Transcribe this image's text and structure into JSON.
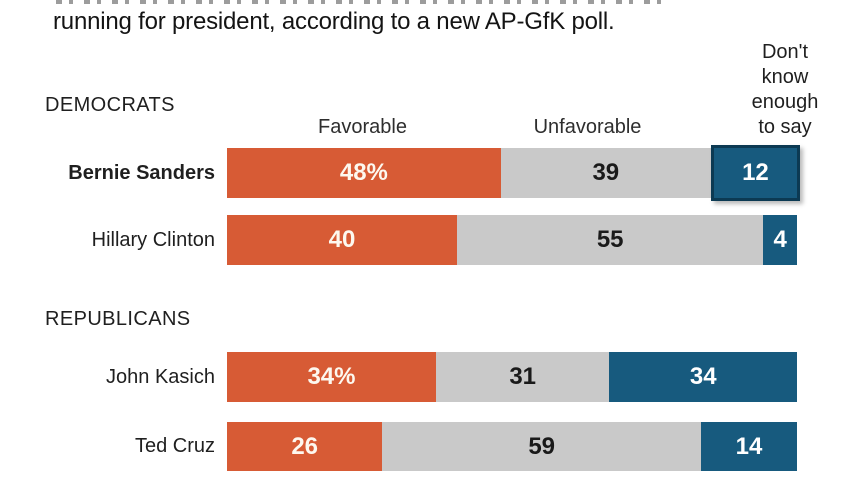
{
  "title": "running for president, according to a new AP-GfK poll.",
  "headers": {
    "favorable": "Favorable",
    "unfavorable": "Unfavorable",
    "dont_know_lines": [
      "Don't",
      "know",
      "enough",
      "to say"
    ]
  },
  "sections": [
    {
      "label": "DEMOCRATS"
    },
    {
      "label": "REPUBLICANS"
    }
  ],
  "rows": [
    {
      "label": "Bernie Sanders",
      "segments": [
        {
          "kind": "favorable",
          "value": 48,
          "display": "48%"
        },
        {
          "kind": "unfavorable",
          "value": 39,
          "display": "39"
        },
        {
          "kind": "dont_know",
          "value": 12,
          "display": "12"
        }
      ]
    },
    {
      "label": "Hillary Clinton",
      "segments": [
        {
          "kind": "favorable",
          "value": 40,
          "display": "40"
        },
        {
          "kind": "unfavorable",
          "value": 55,
          "display": "55"
        },
        {
          "kind": "dont_know",
          "value": 4,
          "display": "4"
        }
      ]
    },
    {
      "label": "John Kasich",
      "segments": [
        {
          "kind": "favorable",
          "value": 34,
          "display": "34%"
        },
        {
          "kind": "unfavorable",
          "value": 31,
          "display": "31"
        },
        {
          "kind": "dont_know",
          "value": 34,
          "display": "34"
        }
      ]
    },
    {
      "label": "Ted Cruz",
      "segments": [
        {
          "kind": "favorable",
          "value": 26,
          "display": "26"
        },
        {
          "kind": "unfavorable",
          "value": 59,
          "display": "59"
        },
        {
          "kind": "dont_know",
          "value": 14,
          "display": "14"
        }
      ]
    }
  ],
  "colors": {
    "favorable": "#d75b35",
    "unfavorable": "#c9c9c9",
    "dont_know": "#175a7e",
    "dont_know_highlight_border": "#0c3a53"
  },
  "chart_data": {
    "type": "bar",
    "orientation": "horizontal",
    "stacked": true,
    "title": "running for president, according to a new AP-GfK poll.",
    "categories": [
      "Bernie Sanders",
      "Hillary Clinton",
      "John Kasich",
      "Ted Cruz"
    ],
    "groups": [
      {
        "label": "DEMOCRATS",
        "members": [
          "Bernie Sanders",
          "Hillary Clinton"
        ]
      },
      {
        "label": "REPUBLICANS",
        "members": [
          "John Kasich",
          "Ted Cruz"
        ]
      }
    ],
    "series": [
      {
        "name": "Favorable",
        "values": [
          48,
          40,
          34,
          26
        ],
        "color": "#d75b35"
      },
      {
        "name": "Unfavorable",
        "values": [
          39,
          55,
          31,
          59
        ],
        "color": "#c9c9c9"
      },
      {
        "name": "Don't know enough to say",
        "values": [
          12,
          4,
          34,
          14
        ],
        "color": "#175a7e"
      }
    ],
    "value_suffix_first_row_per_group": "%",
    "xlim": [
      0,
      100
    ],
    "grid": false,
    "legend_position": "top"
  }
}
